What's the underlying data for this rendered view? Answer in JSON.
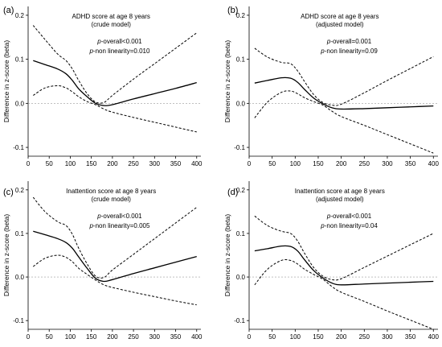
{
  "chart_data": [
    {
      "type": "line",
      "panel_label": "(a)",
      "title": "ADHD score at age 8 years",
      "subtitle": "(crude model)",
      "stat_overall": "p-overall<0.001",
      "stat_nonlin": "p-non linearity=0.010",
      "ylabel": "Difference in z-score (beta)",
      "xlim": [
        0,
        410
      ],
      "ylim": [
        -0.12,
        0.22
      ],
      "xticks": [
        0,
        50,
        100,
        150,
        200,
        250,
        300,
        350,
        400
      ],
      "yticks": [
        -0.1,
        0,
        0.1,
        0.2
      ],
      "ytick_labels": [
        "-0.1",
        "0.0",
        "0.1",
        "0.2"
      ],
      "reference_line": 0,
      "series": [
        {
          "style": "solid",
          "x": [
            12,
            40,
            70,
            90,
            105,
            120,
            140,
            160,
            180,
            200,
            250,
            300,
            350,
            400
          ],
          "values": [
            0.097,
            0.088,
            0.078,
            0.067,
            0.052,
            0.033,
            0.015,
            0.0,
            -0.005,
            -0.003,
            0.01,
            0.022,
            0.034,
            0.047
          ]
        },
        {
          "style": "dashed",
          "x": [
            12,
            40,
            70,
            90,
            105,
            120,
            140,
            160,
            180,
            200,
            250,
            300,
            350,
            400
          ],
          "values": [
            0.177,
            0.145,
            0.112,
            0.097,
            0.078,
            0.052,
            0.022,
            0.003,
            0.002,
            0.018,
            0.055,
            0.09,
            0.125,
            0.16
          ]
        },
        {
          "style": "dashed",
          "x": [
            12,
            40,
            70,
            90,
            105,
            120,
            140,
            160,
            180,
            200,
            250,
            300,
            350,
            400
          ],
          "values": [
            0.018,
            0.035,
            0.04,
            0.035,
            0.026,
            0.015,
            0.004,
            -0.003,
            -0.013,
            -0.02,
            -0.032,
            -0.043,
            -0.054,
            -0.065
          ]
        }
      ]
    },
    {
      "type": "line",
      "panel_label": "(b)",
      "title": "ADHD score at age 8 years",
      "subtitle": "(adjusted model)",
      "stat_overall": "p-overall=0.001",
      "stat_nonlin": "p-non linearity=0.09",
      "ylabel": "Difference in z-score (beta)",
      "xlim": [
        0,
        410
      ],
      "ylim": [
        -0.12,
        0.22
      ],
      "xticks": [
        0,
        50,
        100,
        150,
        200,
        250,
        300,
        350,
        400
      ],
      "yticks": [
        -0.1,
        0,
        0.1,
        0.2
      ],
      "ytick_labels": [
        "-0.1",
        "0.0",
        "0.1",
        "0.2"
      ],
      "reference_line": 0,
      "series": [
        {
          "style": "solid",
          "x": [
            12,
            40,
            70,
            90,
            105,
            120,
            140,
            160,
            180,
            200,
            250,
            300,
            350,
            400
          ],
          "values": [
            0.046,
            0.052,
            0.058,
            0.057,
            0.048,
            0.032,
            0.012,
            -0.001,
            -0.01,
            -0.013,
            -0.012,
            -0.01,
            -0.008,
            -0.006
          ]
        },
        {
          "style": "dashed",
          "x": [
            12,
            40,
            70,
            90,
            105,
            120,
            140,
            160,
            180,
            200,
            250,
            300,
            350,
            400
          ],
          "values": [
            0.125,
            0.105,
            0.093,
            0.09,
            0.074,
            0.05,
            0.02,
            0.002,
            -0.004,
            -0.002,
            0.024,
            0.052,
            0.079,
            0.106
          ]
        },
        {
          "style": "dashed",
          "x": [
            12,
            40,
            70,
            90,
            105,
            120,
            140,
            160,
            180,
            200,
            250,
            300,
            350,
            400
          ],
          "values": [
            -0.033,
            0.003,
            0.025,
            0.028,
            0.022,
            0.013,
            0.004,
            -0.004,
            -0.018,
            -0.03,
            -0.05,
            -0.071,
            -0.092,
            -0.113
          ]
        }
      ]
    },
    {
      "type": "line",
      "panel_label": "(c)",
      "title": "Inattention score at age 8 years",
      "subtitle": "(crude model)",
      "stat_overall": "p-overall<0.001",
      "stat_nonlin": "p-non linearity=0.005",
      "ylabel": "Difference in z-score (beta)",
      "xlim": [
        0,
        410
      ],
      "ylim": [
        -0.12,
        0.22
      ],
      "xticks": [
        0,
        50,
        100,
        150,
        200,
        250,
        300,
        350,
        400
      ],
      "yticks": [
        -0.1,
        0,
        0.1,
        0.2
      ],
      "ytick_labels": [
        "-0.1",
        "0.0",
        "0.1",
        "0.2"
      ],
      "reference_line": 0,
      "series": [
        {
          "style": "solid",
          "x": [
            12,
            40,
            70,
            90,
            105,
            120,
            140,
            160,
            180,
            200,
            250,
            300,
            350,
            400
          ],
          "values": [
            0.105,
            0.097,
            0.088,
            0.079,
            0.066,
            0.046,
            0.02,
            -0.003,
            -0.01,
            -0.006,
            0.008,
            0.021,
            0.034,
            0.047
          ]
        },
        {
          "style": "dashed",
          "x": [
            12,
            40,
            70,
            90,
            105,
            120,
            140,
            160,
            180,
            200,
            250,
            300,
            350,
            400
          ],
          "values": [
            0.183,
            0.15,
            0.127,
            0.118,
            0.098,
            0.066,
            0.03,
            0.002,
            -0.001,
            0.016,
            0.052,
            0.088,
            0.124,
            0.16
          ]
        },
        {
          "style": "dashed",
          "x": [
            12,
            40,
            70,
            90,
            105,
            120,
            140,
            160,
            180,
            200,
            250,
            300,
            350,
            400
          ],
          "values": [
            0.024,
            0.043,
            0.05,
            0.045,
            0.035,
            0.02,
            0.006,
            -0.007,
            -0.018,
            -0.024,
            -0.035,
            -0.045,
            -0.055,
            -0.064
          ]
        }
      ]
    },
    {
      "type": "line",
      "panel_label": "(d)",
      "title": "Inattention score at age 8 years",
      "subtitle": "(adjusted model)",
      "stat_overall": "p-overall<0.001",
      "stat_nonlin": "p-non linearity=0.04",
      "ylabel": "Difference in z-score (beta)",
      "xlim": [
        0,
        410
      ],
      "ylim": [
        -0.12,
        0.22
      ],
      "xticks": [
        0,
        50,
        100,
        150,
        200,
        250,
        300,
        350,
        400
      ],
      "yticks": [
        -0.1,
        0,
        0.1,
        0.2
      ],
      "ytick_labels": [
        "-0.1",
        "0.0",
        "0.1",
        "0.2"
      ],
      "reference_line": 0,
      "series": [
        {
          "style": "solid",
          "x": [
            12,
            40,
            70,
            90,
            105,
            120,
            140,
            160,
            180,
            200,
            250,
            300,
            350,
            400
          ],
          "values": [
            0.06,
            0.065,
            0.071,
            0.07,
            0.06,
            0.04,
            0.015,
            -0.002,
            -0.014,
            -0.018,
            -0.016,
            -0.014,
            -0.012,
            -0.01
          ]
        },
        {
          "style": "dashed",
          "x": [
            12,
            40,
            70,
            90,
            105,
            120,
            140,
            160,
            180,
            200,
            250,
            300,
            350,
            400
          ],
          "values": [
            0.14,
            0.118,
            0.105,
            0.1,
            0.083,
            0.055,
            0.022,
            0.002,
            -0.006,
            -0.004,
            0.022,
            0.048,
            0.074,
            0.1
          ]
        },
        {
          "style": "dashed",
          "x": [
            12,
            40,
            70,
            90,
            105,
            120,
            140,
            160,
            180,
            200,
            250,
            300,
            350,
            400
          ],
          "values": [
            -0.018,
            0.018,
            0.038,
            0.038,
            0.03,
            0.018,
            0.006,
            -0.005,
            -0.022,
            -0.035,
            -0.056,
            -0.078,
            -0.099,
            -0.12
          ]
        }
      ]
    }
  ]
}
